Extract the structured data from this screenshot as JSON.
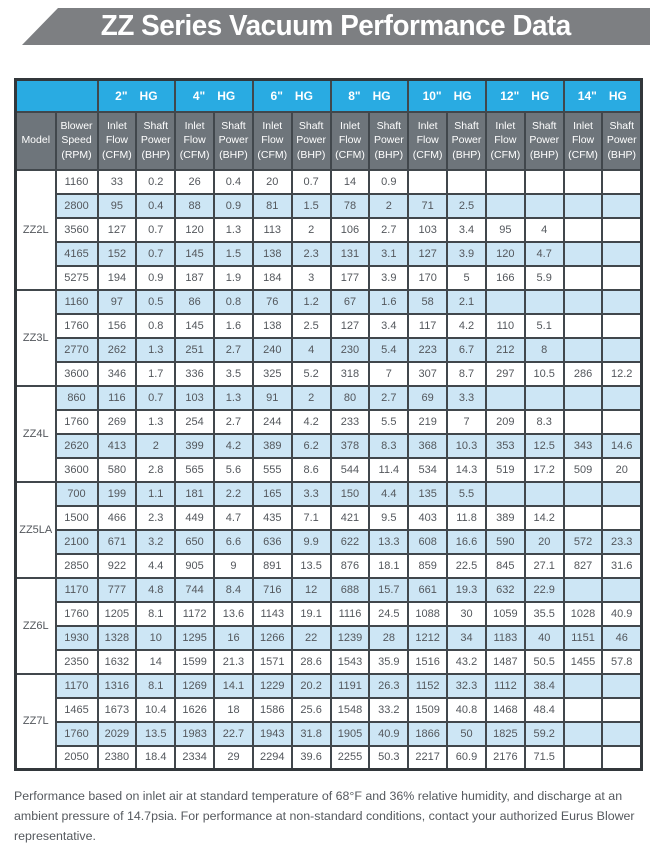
{
  "title": "ZZ Series Vacuum Performance Data",
  "table": {
    "hg": [
      {
        "inches": "2\"",
        "unit": "HG"
      },
      {
        "inches": "4\"",
        "unit": "HG"
      },
      {
        "inches": "6\"",
        "unit": "HG"
      },
      {
        "inches": "8\"",
        "unit": "HG"
      },
      {
        "inches": "10\"",
        "unit": "HG"
      },
      {
        "inches": "12\"",
        "unit": "HG"
      },
      {
        "inches": "14\"",
        "unit": "HG"
      }
    ],
    "headers": {
      "model": "Model",
      "speed": "Blower Speed (RPM)",
      "inlet": "Inlet Flow (CFM)",
      "shaft": "Shaft Power (BHP)"
    },
    "groups": [
      {
        "model": "ZZ2L",
        "rows": [
          {
            "rpm": "1160",
            "values": [
              "33",
              "0.2",
              "26",
              "0.4",
              "20",
              "0.7",
              "14",
              "0.9",
              "",
              "",
              "",
              "",
              "",
              ""
            ]
          },
          {
            "rpm": "2800",
            "values": [
              "95",
              "0.4",
              "88",
              "0.9",
              "81",
              "1.5",
              "78",
              "2",
              "71",
              "2.5",
              "",
              "",
              "",
              ""
            ]
          },
          {
            "rpm": "3560",
            "values": [
              "127",
              "0.7",
              "120",
              "1.3",
              "113",
              "2",
              "106",
              "2.7",
              "103",
              "3.4",
              "95",
              "4",
              "",
              ""
            ]
          },
          {
            "rpm": "4165",
            "values": [
              "152",
              "0.7",
              "145",
              "1.5",
              "138",
              "2.3",
              "131",
              "3.1",
              "127",
              "3.9",
              "120",
              "4.7",
              "",
              ""
            ]
          },
          {
            "rpm": "5275",
            "values": [
              "194",
              "0.9",
              "187",
              "1.9",
              "184",
              "3",
              "177",
              "3.9",
              "170",
              "5",
              "166",
              "5.9",
              "",
              ""
            ]
          }
        ]
      },
      {
        "model": "ZZ3L",
        "rows": [
          {
            "rpm": "1160",
            "values": [
              "97",
              "0.5",
              "86",
              "0.8",
              "76",
              "1.2",
              "67",
              "1.6",
              "58",
              "2.1",
              "",
              "",
              "",
              ""
            ]
          },
          {
            "rpm": "1760",
            "values": [
              "156",
              "0.8",
              "145",
              "1.6",
              "138",
              "2.5",
              "127",
              "3.4",
              "117",
              "4.2",
              "110",
              "5.1",
              "",
              ""
            ]
          },
          {
            "rpm": "2770",
            "values": [
              "262",
              "1.3",
              "251",
              "2.7",
              "240",
              "4",
              "230",
              "5.4",
              "223",
              "6.7",
              "212",
              "8",
              "",
              ""
            ]
          },
          {
            "rpm": "3600",
            "values": [
              "346",
              "1.7",
              "336",
              "3.5",
              "325",
              "5.2",
              "318",
              "7",
              "307",
              "8.7",
              "297",
              "10.5",
              "286",
              "12.2"
            ]
          }
        ]
      },
      {
        "model": "ZZ4L",
        "rows": [
          {
            "rpm": "860",
            "values": [
              "116",
              "0.7",
              "103",
              "1.3",
              "91",
              "2",
              "80",
              "2.7",
              "69",
              "3.3",
              "",
              "",
              "",
              ""
            ]
          },
          {
            "rpm": "1760",
            "values": [
              "269",
              "1.3",
              "254",
              "2.7",
              "244",
              "4.2",
              "233",
              "5.5",
              "219",
              "7",
              "209",
              "8.3",
              "",
              ""
            ]
          },
          {
            "rpm": "2620",
            "values": [
              "413",
              "2",
              "399",
              "4.2",
              "389",
              "6.2",
              "378",
              "8.3",
              "368",
              "10.3",
              "353",
              "12.5",
              "343",
              "14.6"
            ]
          },
          {
            "rpm": "3600",
            "values": [
              "580",
              "2.8",
              "565",
              "5.6",
              "555",
              "8.6",
              "544",
              "11.4",
              "534",
              "14.3",
              "519",
              "17.2",
              "509",
              "20"
            ]
          }
        ]
      },
      {
        "model": "ZZ5LA",
        "rows": [
          {
            "rpm": "700",
            "values": [
              "199",
              "1.1",
              "181",
              "2.2",
              "165",
              "3.3",
              "150",
              "4.4",
              "135",
              "5.5",
              "",
              "",
              "",
              ""
            ]
          },
          {
            "rpm": "1500",
            "values": [
              "466",
              "2.3",
              "449",
              "4.7",
              "435",
              "7.1",
              "421",
              "9.5",
              "403",
              "11.8",
              "389",
              "14.2",
              "",
              ""
            ]
          },
          {
            "rpm": "2100",
            "values": [
              "671",
              "3.2",
              "650",
              "6.6",
              "636",
              "9.9",
              "622",
              "13.3",
              "608",
              "16.6",
              "590",
              "20",
              "572",
              "23.3"
            ]
          },
          {
            "rpm": "2850",
            "values": [
              "922",
              "4.4",
              "905",
              "9",
              "891",
              "13.5",
              "876",
              "18.1",
              "859",
              "22.5",
              "845",
              "27.1",
              "827",
              "31.6"
            ]
          }
        ]
      },
      {
        "model": "ZZ6L",
        "rows": [
          {
            "rpm": "1170",
            "values": [
              "777",
              "4.8",
              "744",
              "8.4",
              "716",
              "12",
              "688",
              "15.7",
              "661",
              "19.3",
              "632",
              "22.9",
              "",
              ""
            ]
          },
          {
            "rpm": "1760",
            "values": [
              "1205",
              "8.1",
              "1172",
              "13.6",
              "1143",
              "19.1",
              "1116",
              "24.5",
              "1088",
              "30",
              "1059",
              "35.5",
              "1028",
              "40.9"
            ]
          },
          {
            "rpm": "1930",
            "values": [
              "1328",
              "10",
              "1295",
              "16",
              "1266",
              "22",
              "1239",
              "28",
              "1212",
              "34",
              "1183",
              "40",
              "1151",
              "46"
            ]
          },
          {
            "rpm": "2350",
            "values": [
              "1632",
              "14",
              "1599",
              "21.3",
              "1571",
              "28.6",
              "1543",
              "35.9",
              "1516",
              "43.2",
              "1487",
              "50.5",
              "1455",
              "57.8"
            ]
          }
        ]
      },
      {
        "model": "ZZ7L",
        "rows": [
          {
            "rpm": "1170",
            "values": [
              "1316",
              "8.1",
              "1269",
              "14.1",
              "1229",
              "20.2",
              "1191",
              "26.3",
              "1152",
              "32.3",
              "1112",
              "38.4",
              "",
              ""
            ]
          },
          {
            "rpm": "1465",
            "values": [
              "1673",
              "10.4",
              "1626",
              "18",
              "1586",
              "25.6",
              "1548",
              "33.2",
              "1509",
              "40.8",
              "1468",
              "48.4",
              "",
              ""
            ]
          },
          {
            "rpm": "1760",
            "values": [
              "2029",
              "13.5",
              "1983",
              "22.7",
              "1943",
              "31.8",
              "1905",
              "40.9",
              "1866",
              "50",
              "1825",
              "59.2",
              "",
              ""
            ]
          },
          {
            "rpm": "2050",
            "values": [
              "2380",
              "18.4",
              "2334",
              "29",
              "2294",
              "39.6",
              "2255",
              "50.3",
              "2217",
              "60.9",
              "2176",
              "71.5",
              "",
              ""
            ]
          }
        ]
      }
    ]
  },
  "footer": "Performance based on inlet air at standard temperature of 68°F and 36% relative humidity, and discharge at an ambient pressure of 14.7psia. For performance at non-standard conditions, contact your authorized Eurus Blower representative.",
  "colors": {
    "header_cyan": "#29abe2",
    "subheader_gray": "#6e757b",
    "stripe_blue": "#cde6f5",
    "banner_gray": "#7d7f82",
    "border": "#41474c",
    "cell_text": "#53575c"
  }
}
